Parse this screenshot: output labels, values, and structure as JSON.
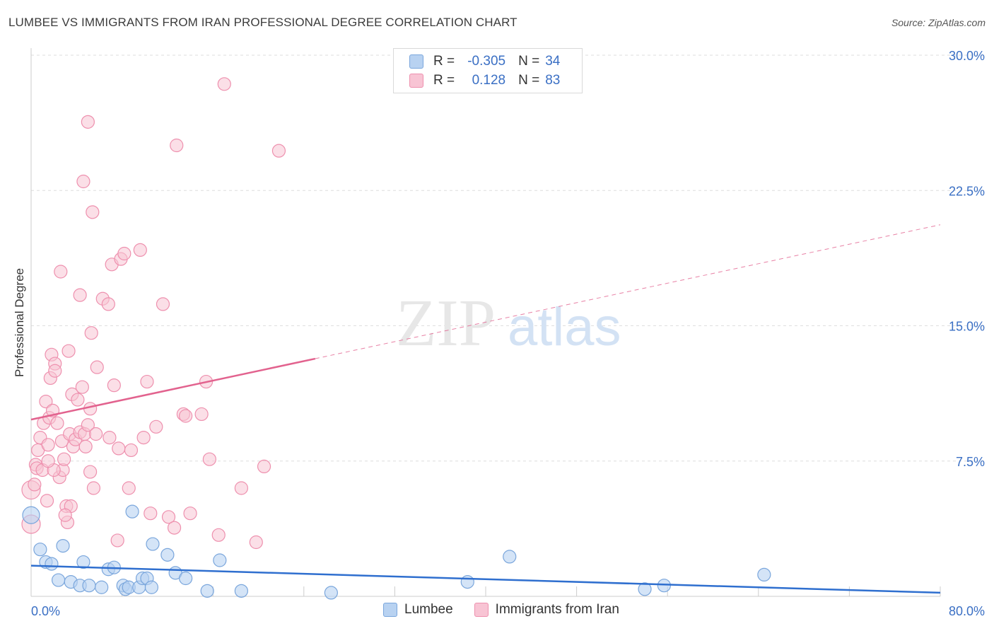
{
  "title": "LUMBEE VS IMMIGRANTS FROM IRAN PROFESSIONAL DEGREE CORRELATION CHART",
  "source": "Source: ZipAtlas.com",
  "watermark": {
    "zip": "ZIP",
    "atlas": "atlas"
  },
  "legend": {
    "r_label": "R =",
    "n_label": "N =",
    "rows": [
      {
        "r": "-0.305",
        "n": "34"
      },
      {
        "r": "0.128",
        "n": "83"
      }
    ]
  },
  "colors": {
    "lumbee_fill": "#b8d2f1",
    "lumbee_stroke": "#7aa6dc",
    "lumbee_line": "#2f6fcf",
    "iran_fill": "#f8c4d4",
    "iran_stroke": "#ee90ae",
    "iran_line": "#e2628e",
    "tick_label": "#3a6fc4",
    "grid": "#dedede"
  },
  "chart_data": {
    "type": "scatter",
    "title": "LUMBEE VS IMMIGRANTS FROM IRAN PROFESSIONAL DEGREE CORRELATION CHART",
    "xlabel": "",
    "ylabel": "Professional Degree",
    "xlim": [
      0,
      80
    ],
    "ylim": [
      0,
      30
    ],
    "x_tick_labels": [
      "0.0%",
      "80.0%"
    ],
    "y_ticks": [
      7.5,
      15.0,
      22.5,
      30.0
    ],
    "y_tick_labels": [
      "7.5%",
      "15.0%",
      "22.5%",
      "30.0%"
    ],
    "grid": true,
    "legend_position": "top-center",
    "series": [
      {
        "name": "Lumbee",
        "r": -0.305,
        "n": 34,
        "trend": {
          "x0": 0,
          "y0": 1.7,
          "x1": 80,
          "y1": 0.2,
          "dashed_from": null
        },
        "points": [
          [
            0,
            4.5
          ],
          [
            0.8,
            2.6
          ],
          [
            1.3,
            1.9
          ],
          [
            1.8,
            1.8
          ],
          [
            2.4,
            0.9
          ],
          [
            2.8,
            2.8
          ],
          [
            3.5,
            0.8
          ],
          [
            4.3,
            0.6
          ],
          [
            4.6,
            1.9
          ],
          [
            5.1,
            0.6
          ],
          [
            6.2,
            0.5
          ],
          [
            6.8,
            1.5
          ],
          [
            7.3,
            1.6
          ],
          [
            8.1,
            0.6
          ],
          [
            8.3,
            0.4
          ],
          [
            8.9,
            4.7
          ],
          [
            8.6,
            0.5
          ],
          [
            9.5,
            0.5
          ],
          [
            9.8,
            1.0
          ],
          [
            10.2,
            1.0
          ],
          [
            10.6,
            0.5
          ],
          [
            10.7,
            2.9
          ],
          [
            12.0,
            2.3
          ],
          [
            12.7,
            1.3
          ],
          [
            13.6,
            1.0
          ],
          [
            15.5,
            0.3
          ],
          [
            16.6,
            2.0
          ],
          [
            18.5,
            0.3
          ],
          [
            26.4,
            0.2
          ],
          [
            38.4,
            0.8
          ],
          [
            42.1,
            2.2
          ],
          [
            54.0,
            0.4
          ],
          [
            55.7,
            0.6
          ],
          [
            64.5,
            1.2
          ]
        ]
      },
      {
        "name": "Immigrants from Iran",
        "r": 0.128,
        "n": 83,
        "trend": {
          "x0": 0,
          "y0": 9.8,
          "x1": 80,
          "y1": 20.6,
          "dashed_from": 25
        },
        "points": [
          [
            0,
            4.0
          ],
          [
            0,
            5.9
          ],
          [
            0.3,
            6.2
          ],
          [
            0.4,
            7.3
          ],
          [
            0.5,
            7.1
          ],
          [
            0.6,
            8.1
          ],
          [
            0.8,
            8.8
          ],
          [
            1.0,
            7.0
          ],
          [
            1.1,
            9.6
          ],
          [
            1.3,
            10.8
          ],
          [
            1.4,
            5.3
          ],
          [
            1.5,
            8.4
          ],
          [
            1.6,
            9.9
          ],
          [
            1.7,
            12.1
          ],
          [
            1.8,
            13.4
          ],
          [
            1.9,
            10.3
          ],
          [
            2.1,
            12.9
          ],
          [
            2.1,
            12.5
          ],
          [
            2.3,
            9.6
          ],
          [
            2.5,
            6.6
          ],
          [
            2.6,
            18.0
          ],
          [
            2.7,
            8.6
          ],
          [
            2.8,
            7.0
          ],
          [
            2.9,
            7.6
          ],
          [
            3.1,
            5.0
          ],
          [
            3.2,
            4.1
          ],
          [
            3.3,
            13.6
          ],
          [
            3.4,
            9.0
          ],
          [
            3.5,
            5.0
          ],
          [
            3.6,
            11.2
          ],
          [
            3.7,
            8.3
          ],
          [
            3.9,
            8.7
          ],
          [
            4.1,
            10.9
          ],
          [
            4.3,
            9.1
          ],
          [
            4.3,
            16.7
          ],
          [
            4.5,
            11.6
          ],
          [
            4.6,
            23.0
          ],
          [
            4.7,
            9.0
          ],
          [
            4.8,
            8.3
          ],
          [
            5.0,
            9.5
          ],
          [
            5.0,
            26.3
          ],
          [
            5.2,
            10.4
          ],
          [
            5.2,
            6.9
          ],
          [
            5.3,
            14.6
          ],
          [
            5.4,
            21.3
          ],
          [
            5.5,
            6.0
          ],
          [
            5.7,
            9.0
          ],
          [
            5.8,
            12.7
          ],
          [
            6.3,
            16.5
          ],
          [
            6.8,
            16.2
          ],
          [
            6.9,
            8.8
          ],
          [
            7.1,
            18.4
          ],
          [
            7.3,
            11.7
          ],
          [
            7.6,
            3.1
          ],
          [
            7.7,
            8.2
          ],
          [
            7.9,
            18.7
          ],
          [
            8.2,
            19.0
          ],
          [
            8.6,
            6.0
          ],
          [
            8.8,
            8.1
          ],
          [
            9.6,
            19.2
          ],
          [
            9.9,
            8.8
          ],
          [
            10.2,
            11.9
          ],
          [
            10.5,
            4.6
          ],
          [
            11.0,
            9.4
          ],
          [
            11.6,
            16.2
          ],
          [
            12.1,
            4.4
          ],
          [
            12.6,
            3.8
          ],
          [
            13.4,
            10.1
          ],
          [
            13.6,
            10.0
          ],
          [
            14.0,
            4.6
          ],
          [
            15.0,
            10.1
          ],
          [
            15.4,
            11.9
          ],
          [
            15.7,
            7.6
          ],
          [
            16.5,
            3.4
          ],
          [
            17.0,
            28.4
          ],
          [
            18.5,
            6.0
          ],
          [
            19.8,
            3.0
          ],
          [
            20.5,
            7.2
          ],
          [
            21.8,
            24.7
          ],
          [
            12.8,
            25.0
          ],
          [
            2.0,
            7.0
          ],
          [
            1.5,
            7.5
          ],
          [
            3.0,
            4.5
          ]
        ]
      }
    ]
  },
  "bottom_legend": [
    "Lumbee",
    "Immigrants from Iran"
  ]
}
